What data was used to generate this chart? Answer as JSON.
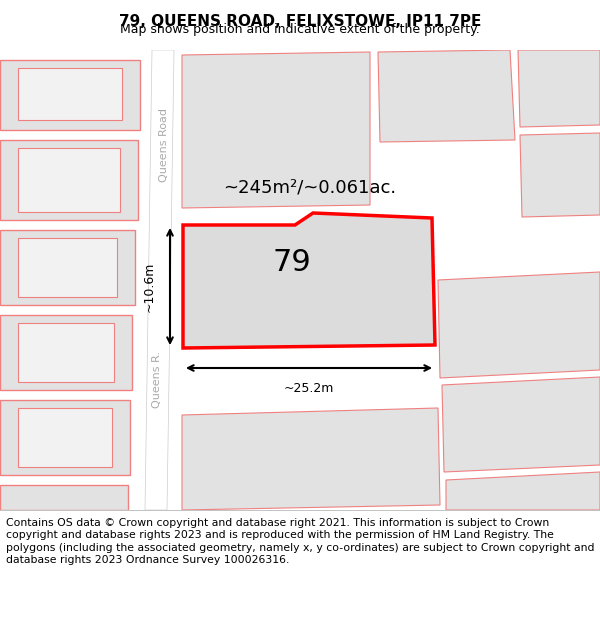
{
  "title": "79, QUEENS ROAD, FELIXSTOWE, IP11 7PE",
  "subtitle": "Map shows position and indicative extent of the property.",
  "footer": "Contains OS data © Crown copyright and database right 2021. This information is subject to Crown copyright and database rights 2023 and is reproduced with the permission of HM Land Registry. The polygons (including the associated geometry, namely x, y co-ordinates) are subject to Crown copyright and database rights 2023 Ordnance Survey 100026316.",
  "area_label": "~245m²/~0.061ac.",
  "width_label": "~25.2m",
  "height_label": "~10.6m",
  "number_label": "79",
  "road_label_top": "Queens Road",
  "road_label_bottom": "Queens R.",
  "map_bg": "#e8e8e8",
  "road_color": "#ffffff",
  "plot_fill": "#dcdcdc",
  "plot_border": "#ff0000",
  "other_fill": "#e2e2e2",
  "other_border": "#f08080",
  "title_fontsize": 11,
  "subtitle_fontsize": 9,
  "footer_fontsize": 7.8
}
